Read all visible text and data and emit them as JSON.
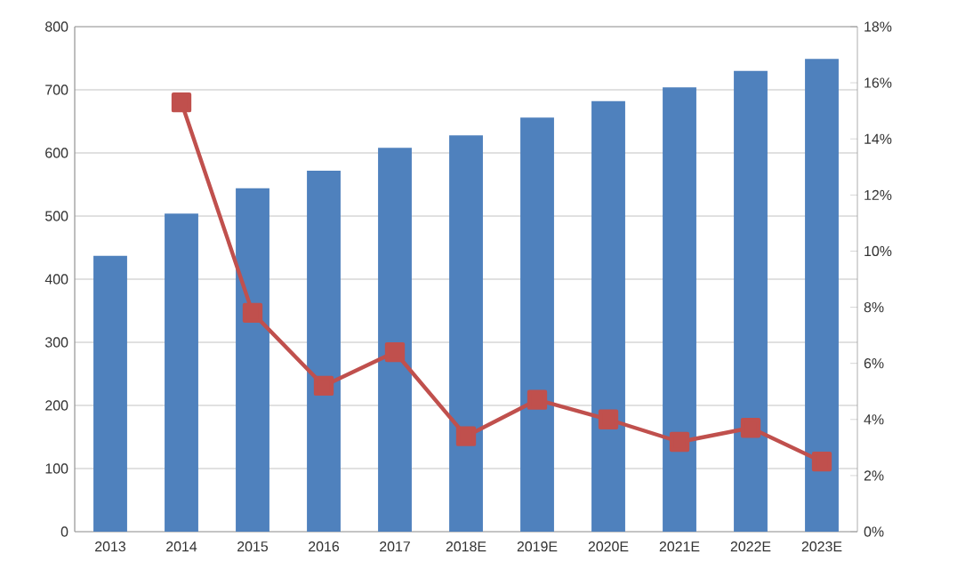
{
  "chart_data": {
    "type": "bar",
    "categories": [
      "2013",
      "2014",
      "2015",
      "2016",
      "2017",
      "2018E",
      "2019E",
      "2020E",
      "2021E",
      "2022E",
      "2023E"
    ],
    "series": [
      {
        "color": "#4f81bd",
        "values": [
          437,
          504,
          544,
          572,
          608,
          628,
          656,
          682,
          704,
          730,
          749
        ]
      },
      {
        "type": "line",
        "axis": "y2",
        "color": "#c0504d",
        "marker": "square",
        "values": [
          null,
          15.3,
          7.8,
          5.2,
          6.4,
          3.4,
          4.7,
          4.0,
          3.2,
          3.7,
          2.5
        ]
      }
    ],
    "ylim": [
      0,
      800
    ],
    "yticks": [
      0,
      100,
      200,
      300,
      400,
      500,
      600,
      700,
      800
    ],
    "y2lim": [
      0,
      18
    ],
    "y2ticks": [
      {
        "value": 0,
        "label": "0%"
      },
      {
        "value": 2,
        "label": "2%"
      },
      {
        "value": 4,
        "label": "4%"
      },
      {
        "value": 6,
        "label": "6%"
      },
      {
        "value": 8,
        "label": "8%"
      },
      {
        "value": 10,
        "label": "10%"
      },
      {
        "value": 12,
        "label": "12%"
      },
      {
        "value": 14,
        "label": "14%"
      },
      {
        "value": 16,
        "label": "16%"
      },
      {
        "value": 18,
        "label": "18%"
      }
    ],
    "grid": "y"
  }
}
